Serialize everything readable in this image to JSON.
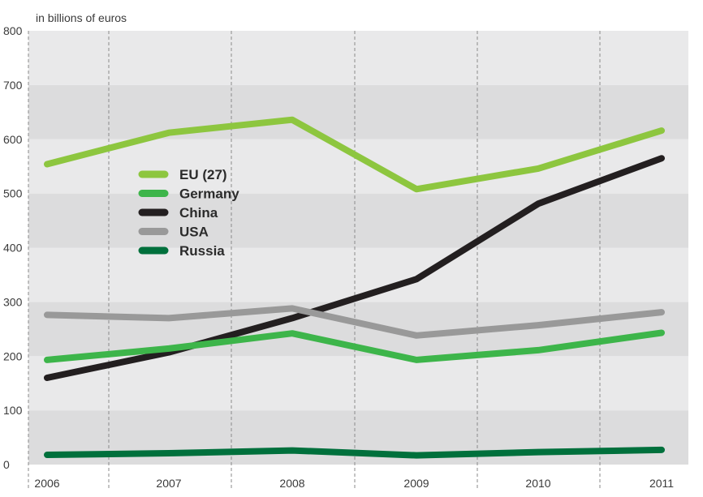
{
  "chart_data": {
    "type": "line",
    "unit_label": "in billions of euros",
    "x": [
      "2006",
      "2007",
      "2008",
      "2009",
      "2010",
      "2011"
    ],
    "ylim": [
      0,
      800
    ],
    "yticks": [
      0,
      100,
      200,
      300,
      400,
      500,
      600,
      700,
      800
    ],
    "grid": true,
    "legend_position": "upper-left inside plot",
    "series": [
      {
        "name": "EU (27)",
        "color": "#8dc63f",
        "values": [
          554,
          612,
          636,
          508,
          546,
          616
        ]
      },
      {
        "name": "Germany",
        "color": "#3db54a",
        "values": [
          193,
          214,
          242,
          193,
          211,
          243
        ]
      },
      {
        "name": "China",
        "color": "#231f20",
        "values": [
          160,
          207,
          270,
          342,
          481,
          565
        ]
      },
      {
        "name": "USA",
        "color": "#999999",
        "values": [
          276,
          270,
          288,
          238,
          257,
          281
        ]
      },
      {
        "name": "Russia",
        "color": "#00703c",
        "values": [
          18,
          21,
          26,
          17,
          23,
          27
        ]
      }
    ]
  }
}
